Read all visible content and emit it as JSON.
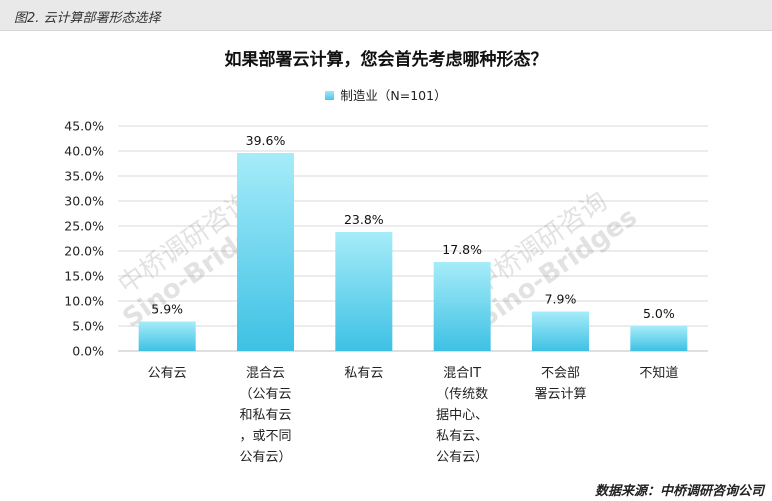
{
  "header": {
    "caption": "图2. 云计算部署形态选择"
  },
  "source": "数据来源：中桥调研咨询公司",
  "watermark": {
    "text_cn": "中桥调研咨询",
    "text_en": "Sino-Bridges"
  },
  "colors": {
    "bar_top": "#a6ecf9",
    "bar_bottom": "#3ec1e4",
    "grid": "#d9d9d9",
    "axis": "#bfbfbf"
  },
  "chart_data": {
    "type": "bar",
    "title": "如果部署云计算，您会首先考虑哪种形态？",
    "legend_position": "top-center",
    "grid": true,
    "categories": [
      [
        "公有云"
      ],
      [
        "混合云",
        "（公有云",
        "和私有云",
        "，或不同",
        "公有云）"
      ],
      [
        "私有云"
      ],
      [
        "混合IT",
        "（传统数",
        "据中心、",
        "私有云、",
        "公有云）"
      ],
      [
        "不会部",
        "署云计算"
      ],
      [
        "不知道"
      ]
    ],
    "series": [
      {
        "name": "制造业（N=101）",
        "values": [
          5.9,
          39.6,
          23.8,
          17.8,
          7.9,
          5.0
        ]
      }
    ],
    "data_labels": [
      "5.9%",
      "39.6%",
      "23.8%",
      "17.8%",
      "7.9%",
      "5.0%"
    ],
    "ylim": [
      0,
      45
    ],
    "yticks": [
      "0.0%",
      "5.0%",
      "10.0%",
      "15.0%",
      "20.0%",
      "25.0%",
      "30.0%",
      "35.0%",
      "40.0%",
      "45.0%"
    ]
  }
}
